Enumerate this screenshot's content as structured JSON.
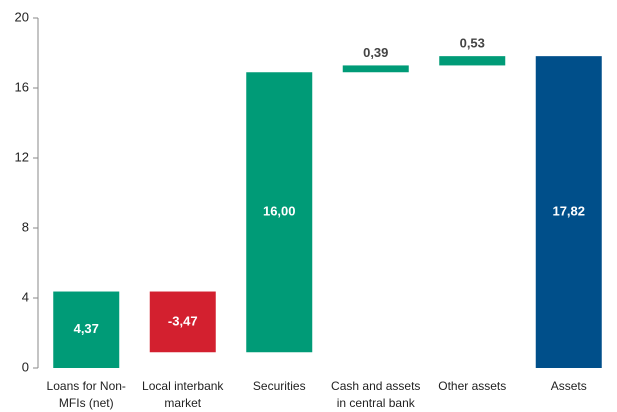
{
  "chart_data": {
    "type": "waterfall",
    "categories": [
      "Loans for Non-MFIs (net)",
      "Local interbank market",
      "Securities",
      "Cash and assets in central bank",
      "Other assets",
      "Assets"
    ],
    "values": [
      4.37,
      -3.47,
      16.0,
      0.39,
      0.53,
      17.82
    ],
    "value_labels": [
      "4,37",
      "-3,47",
      "16,00",
      "0,39",
      "0,53",
      "17,82"
    ],
    "measure": [
      "relative",
      "relative",
      "relative",
      "relative",
      "relative",
      "total"
    ],
    "colors": [
      "#009b77",
      "#d3202f",
      "#009b77",
      "#009b77",
      "#009b77",
      "#004f8a"
    ],
    "ylim": [
      0,
      20
    ],
    "yticks": [
      0,
      4,
      8,
      12,
      16,
      20
    ],
    "grid": false
  }
}
